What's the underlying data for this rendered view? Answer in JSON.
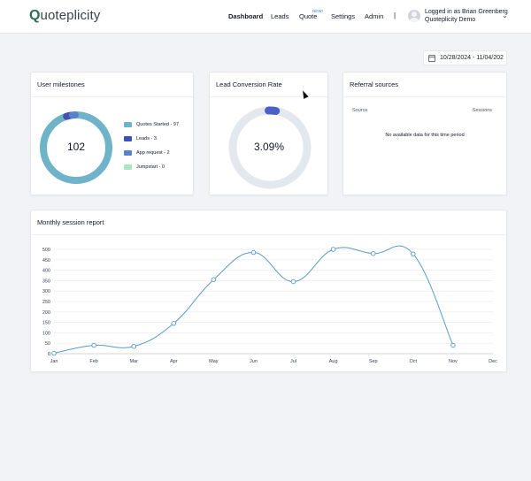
{
  "header": {
    "logo_q": "Q",
    "logo_rest": "uoteplicity",
    "nav": [
      {
        "label": "Dashboard",
        "active": true
      },
      {
        "label": "Leads",
        "active": false
      },
      {
        "label": "Quote",
        "active": false
      },
      {
        "label": "Settings",
        "active": false
      },
      {
        "label": "Admin",
        "active": false
      }
    ],
    "quote_badge": "NEW!",
    "separator": "|",
    "user_line1": "Logged in as Brian Greenberg",
    "user_line2": "Quoteplicity Demo"
  },
  "date_range": {
    "label": "10/28/2024 - 11/04/202"
  },
  "milestones": {
    "title": "User milestones",
    "total": "102",
    "legend": [
      {
        "label": "Quotes Started - 97",
        "color": "#6fb3c9"
      },
      {
        "label": "Leads - 3",
        "color": "#3f51b5"
      },
      {
        "label": "App request - 2",
        "color": "#5a82c8"
      },
      {
        "label": "Jumpstart - 0",
        "color": "#a8e6c7"
      }
    ]
  },
  "conversion": {
    "title": "Lead Conversion Rate",
    "value": "3.09%",
    "fraction": 0.0309,
    "track_color": "#e3e8ef",
    "fill_color": "#4b61c7"
  },
  "referrals": {
    "title": "Referral sources",
    "col_source": "Source",
    "col_sessions": "Sessions",
    "empty": "No available data for this time period"
  },
  "session_report": {
    "title": "Monthly session report"
  },
  "chart_data": {
    "type": "line",
    "title": "Monthly session report",
    "categories": [
      "Jan",
      "Feb",
      "Mar",
      "Apr",
      "May",
      "Jun",
      "Jul",
      "Aug",
      "Sep",
      "Oct",
      "Nov",
      "Dec"
    ],
    "series": [
      {
        "values": [
          2,
          40,
          35,
          145,
          355,
          485,
          345,
          500,
          480,
          478,
          40,
          null
        ],
        "color": "#5b9ac8"
      }
    ],
    "ylim": [
      0,
      500
    ],
    "yticks": [
      0,
      50,
      100,
      150,
      200,
      250,
      300,
      350,
      400,
      450,
      500
    ],
    "grid": true,
    "legend": "none"
  }
}
